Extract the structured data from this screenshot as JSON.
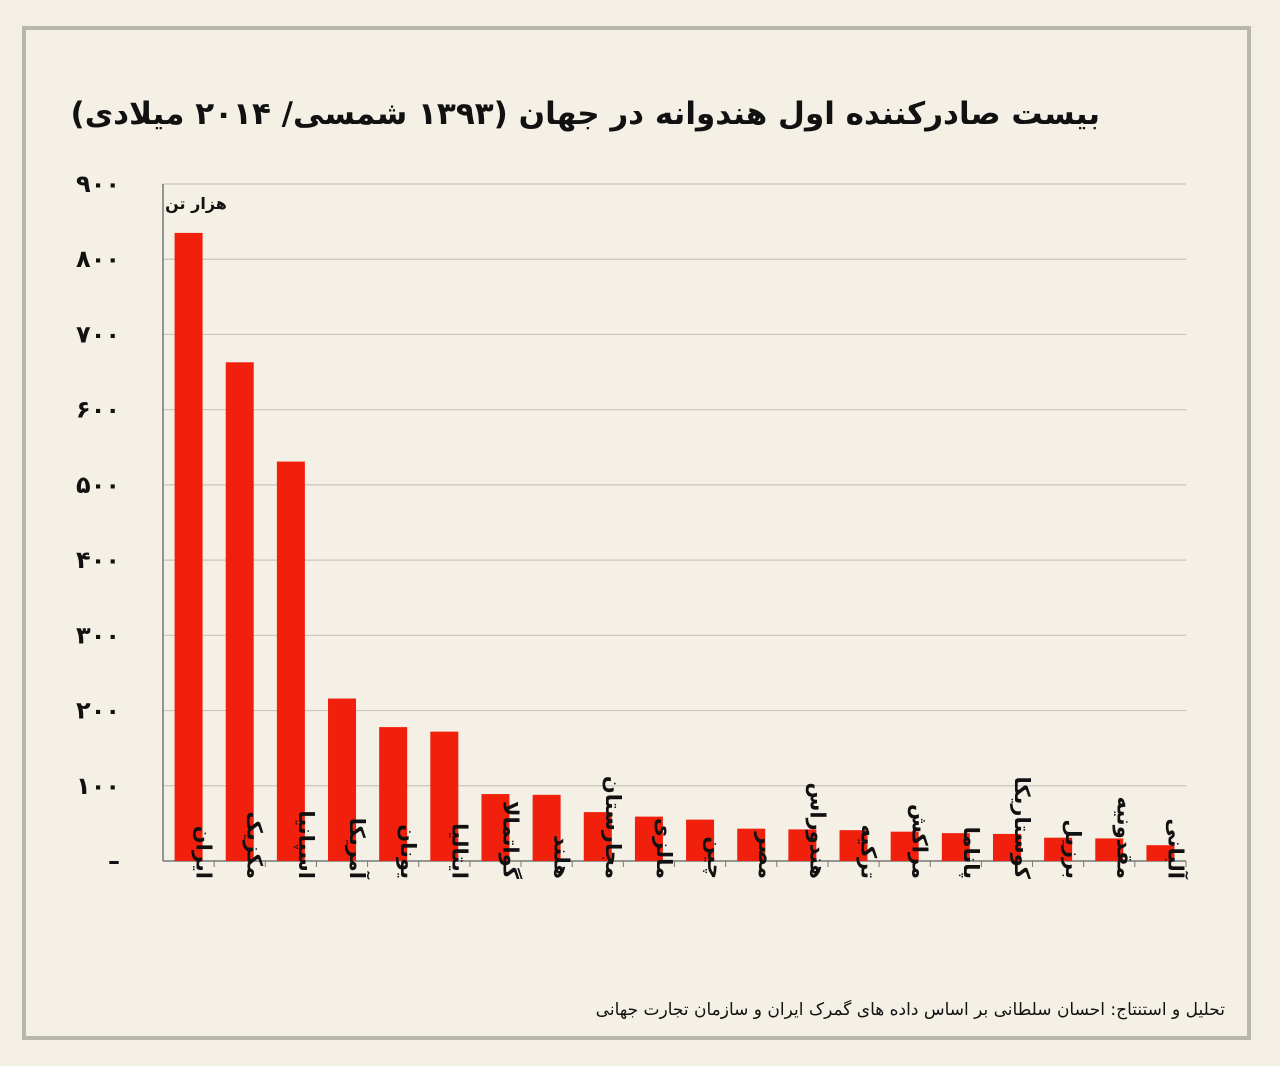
{
  "title": "بیست صادرکننده اول هندوانه در جهان (۱۳۹۳ شمسی/ ۲۰۱۴ میلادی)",
  "footer": "تحلیل و استنتاج: احسان سلطانی بر اساس داده های گمرک  ایران و سازمان تجارت جهانی",
  "colors": {
    "bar": "#f0200c",
    "grid": "#c9c5bd",
    "axis": "#777777",
    "background": "#f4f0e6"
  },
  "chart_data": {
    "type": "bar",
    "title": "بیست صادرکننده اول هندوانه در جهان (۱۳۹۳ شمسی/ ۲۰۱۴ میلادی)",
    "unit_label": "هزار تن",
    "categories": [
      "ایران",
      "مکزیک",
      "اسپانیا",
      "آمریکا",
      "یونان",
      "ایتالیا",
      "گواتمالا",
      "هلند",
      "مجارستان",
      "مالزی",
      "چین",
      "مصر",
      "هندوراس",
      "ترکیه",
      "مراکش",
      "پاناما",
      "کوستاریکا",
      "برزیل",
      "مقدونیه",
      "آلبانی"
    ],
    "values": [
      835,
      663,
      531,
      216,
      178,
      172,
      89,
      88,
      65,
      59,
      55,
      43,
      42,
      41,
      39,
      37,
      36,
      31,
      30,
      21
    ],
    "y_ticks": [
      "۰",
      "۱۰۰",
      "۲۰۰",
      "۳۰۰",
      "۴۰۰",
      "۵۰۰",
      "۶۰۰",
      "۷۰۰",
      "۸۰۰",
      "۹۰۰"
    ],
    "ylim": [
      0,
      900
    ],
    "grid": true
  }
}
